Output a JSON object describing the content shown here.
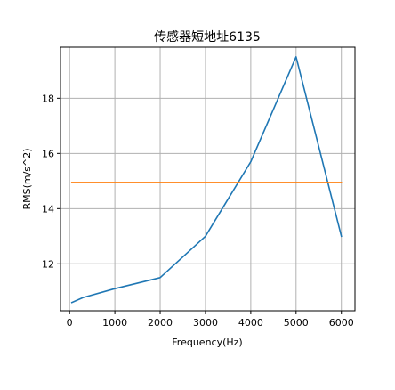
{
  "chart_data": {
    "type": "line",
    "title": "传感器短地址6135",
    "xlabel": "Frequency(Hz)",
    "ylabel": "RMS(m/s^2)",
    "xlim": [
      -200,
      6300
    ],
    "ylim": [
      10.3,
      19.85
    ],
    "xticks": [
      0,
      1000,
      2000,
      3000,
      4000,
      5000,
      6000
    ],
    "yticks": [
      12,
      14,
      16,
      18
    ],
    "grid": true,
    "series": [
      {
        "color": "#1f77b4",
        "x": [
          50,
          300,
          1000,
          2000,
          3000,
          4000,
          5000,
          6000
        ],
        "y": [
          10.6,
          10.78,
          11.1,
          11.5,
          13.0,
          15.7,
          19.5,
          13.0
        ]
      },
      {
        "color": "#ff7f0e",
        "x": [
          50,
          6000
        ],
        "y": [
          14.95,
          14.95
        ]
      }
    ]
  }
}
